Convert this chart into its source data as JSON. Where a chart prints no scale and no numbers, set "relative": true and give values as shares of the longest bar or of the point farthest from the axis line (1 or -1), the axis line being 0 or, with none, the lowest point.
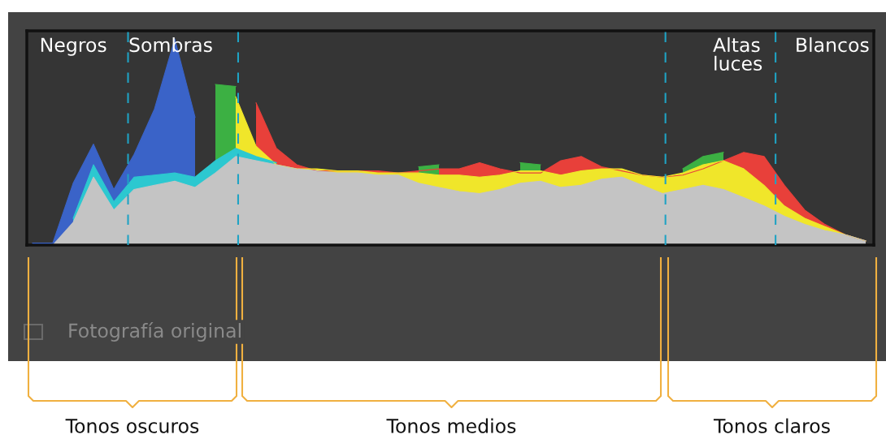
{
  "chart_data": {
    "type": "area",
    "relative": true,
    "grid": false,
    "legend": false,
    "categories": [
      null,
      null,
      null,
      null,
      null,
      null,
      null,
      null,
      null,
      null,
      null,
      null,
      null,
      null,
      null,
      null,
      null,
      null,
      null,
      null,
      null,
      null,
      null,
      null,
      null,
      null,
      null,
      null,
      null,
      null,
      null,
      null,
      null,
      null,
      null,
      null,
      null,
      null,
      null,
      null,
      null,
      null
    ],
    "series": [
      {
        "color": "#e8403a",
        "values": [
          null,
          null,
          null,
          null,
          null,
          null,
          null,
          null,
          null,
          null,
          null,
          0.69,
          0.47,
          0.39,
          0.36,
          0.36,
          0.36,
          0.36,
          0.35,
          0.36,
          0.37,
          0.37,
          0.4,
          0.37,
          0.35,
          0.35,
          0.41,
          0.43,
          0.38,
          0.36,
          0.34,
          0.33,
          0.34,
          0.37,
          0.41,
          0.45,
          0.43,
          0.29,
          0.17,
          0.1,
          0.05,
          0.02
        ]
      },
      {
        "color": "#3cb043",
        "values": [
          null,
          null,
          null,
          null,
          null,
          null,
          null,
          null,
          null,
          0.78,
          0.77,
          null,
          null,
          null,
          null,
          null,
          null,
          null,
          null,
          0.38,
          0.39,
          null,
          null,
          null,
          0.4,
          0.39,
          null,
          null,
          null,
          null,
          null,
          null,
          0.37,
          0.43,
          0.45,
          null,
          null,
          null,
          null,
          null,
          null,
          null
        ]
      },
      {
        "color": "#f0e62a",
        "values": [
          null,
          null,
          null,
          null,
          null,
          null,
          null,
          null,
          null,
          null,
          0.72,
          0.48,
          0.39,
          0.37,
          0.37,
          0.36,
          0.36,
          0.35,
          0.35,
          0.35,
          0.34,
          0.34,
          0.33,
          0.34,
          0.36,
          0.36,
          0.34,
          0.36,
          0.37,
          0.37,
          0.34,
          0.33,
          0.35,
          0.39,
          0.41,
          0.37,
          0.29,
          0.19,
          0.13,
          0.09,
          0.05,
          0.02
        ]
      },
      {
        "color": "#3a63c8",
        "values": [
          0.01,
          0.01,
          0.3,
          0.49,
          0.27,
          0.44,
          0.66,
          1,
          0.62,
          null,
          null,
          null,
          null,
          null,
          null,
          null,
          null,
          null,
          null,
          null,
          null,
          null,
          null,
          null,
          null,
          null,
          null,
          null,
          null,
          null,
          null,
          null,
          null,
          null,
          null,
          null,
          null,
          null,
          null,
          null,
          null,
          null
        ]
      },
      {
        "color": "#2cc8d0",
        "values": [
          null,
          null,
          0.13,
          0.39,
          0.21,
          0.33,
          0.34,
          0.35,
          0.33,
          0.41,
          0.47,
          0.43,
          0.4,
          null,
          null,
          null,
          null,
          null,
          null,
          null,
          null,
          null,
          null,
          null,
          null,
          null,
          null,
          null,
          null,
          null,
          null,
          null,
          null,
          null,
          null,
          null,
          null,
          null,
          null,
          null,
          null,
          null
        ]
      },
      {
        "color": "#c4c4c4",
        "values": [
          0,
          0,
          0.11,
          0.33,
          0.17,
          0.27,
          0.29,
          0.31,
          0.28,
          0.35,
          0.43,
          0.41,
          0.39,
          0.37,
          0.36,
          0.35,
          0.35,
          0.34,
          0.34,
          0.3,
          0.28,
          0.26,
          0.25,
          0.27,
          0.3,
          0.31,
          0.28,
          0.29,
          0.32,
          0.33,
          0.29,
          0.25,
          0.27,
          0.29,
          0.27,
          0.23,
          0.19,
          0.14,
          0.1,
          0.07,
          0.05,
          0.02
        ]
      }
    ],
    "annotations": [
      "Negros",
      "Sombras",
      "Altas\nluces",
      "Blancos",
      "Fotografía original",
      "Tonos oscuros",
      "Tonos medios",
      "Tonos claros"
    ]
  }
}
